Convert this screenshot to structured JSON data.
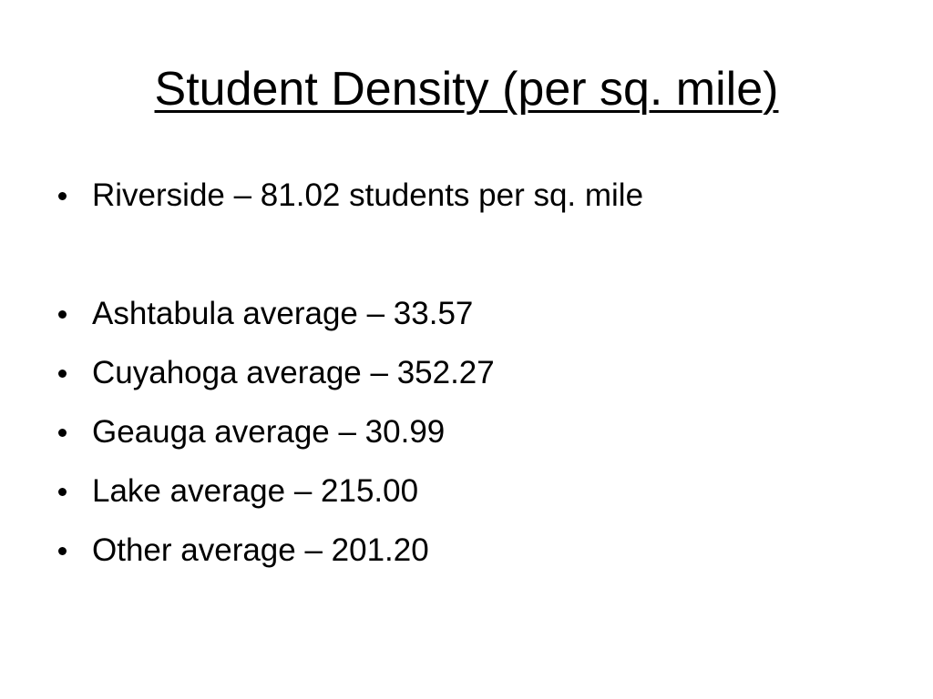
{
  "slide": {
    "title": "Student Density (per sq. mile)",
    "bullets": [
      "Riverside – 81.02 students per sq. mile",
      "Ashtabula average – 33.57",
      "Cuyahoga average – 352.27",
      "Geauga average – 30.99",
      "Lake average – 215.00",
      "Other average – 201.20"
    ]
  }
}
